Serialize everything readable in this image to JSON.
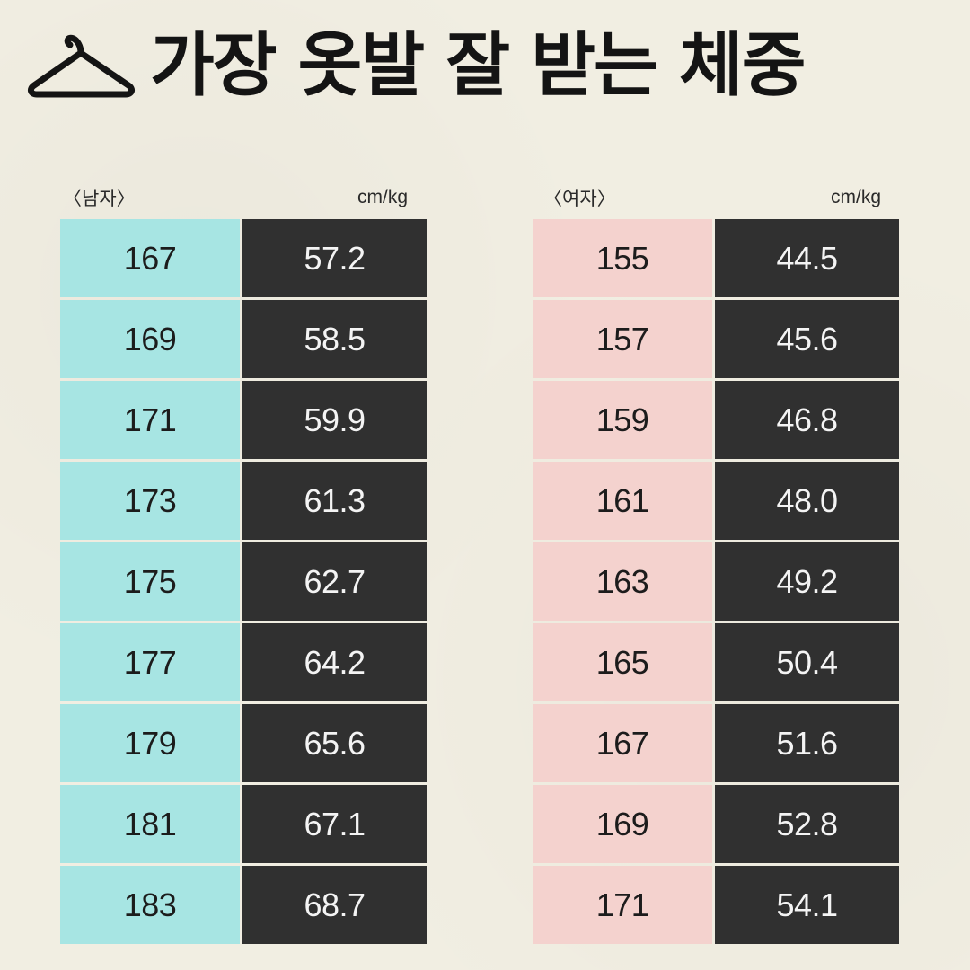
{
  "title": "가장 옷발 잘 받는 체중",
  "icons": {
    "title_icon": "hanger-icon"
  },
  "colors": {
    "background": "#f1eee2",
    "male_height_bg": "#a7e5e3",
    "female_height_bg": "#f4d2ce",
    "weight_bg": "#303030",
    "title_text": "#141414"
  },
  "chart_data": [
    {
      "type": "table",
      "title": "〈남자〉",
      "unit": "cm/kg",
      "columns": [
        "cm",
        "kg"
      ],
      "rows": [
        [
          "167",
          "57.2"
        ],
        [
          "169",
          "58.5"
        ],
        [
          "171",
          "59.9"
        ],
        [
          "173",
          "61.3"
        ],
        [
          "175",
          "62.7"
        ],
        [
          "177",
          "64.2"
        ],
        [
          "179",
          "65.6"
        ],
        [
          "181",
          "67.1"
        ],
        [
          "183",
          "68.7"
        ]
      ]
    },
    {
      "type": "table",
      "title": "〈여자〉",
      "unit": "cm/kg",
      "columns": [
        "cm",
        "kg"
      ],
      "rows": [
        [
          "155",
          "44.5"
        ],
        [
          "157",
          "45.6"
        ],
        [
          "159",
          "46.8"
        ],
        [
          "161",
          "48.0"
        ],
        [
          "163",
          "49.2"
        ],
        [
          "165",
          "50.4"
        ],
        [
          "167",
          "51.6"
        ],
        [
          "169",
          "52.8"
        ],
        [
          "171",
          "54.1"
        ]
      ]
    }
  ]
}
